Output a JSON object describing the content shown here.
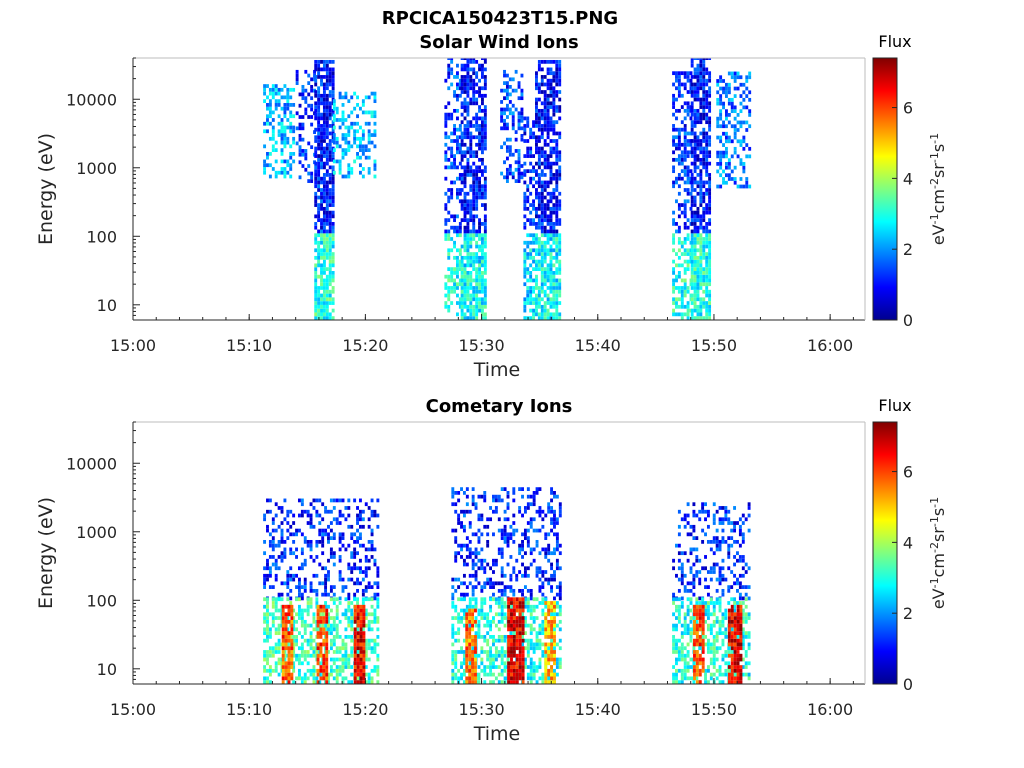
{
  "figure": {
    "title": "RPCICA150423T15.PNG"
  },
  "chart_data": [
    {
      "type": "heatmap",
      "title": "Solar Wind Ions",
      "xlabel": "Time",
      "ylabel": "Energy (eV)",
      "x_ticks": [
        "15:00",
        "15:10",
        "15:20",
        "15:30",
        "15:40",
        "15:50",
        "16:00"
      ],
      "x_range_minutes": [
        0,
        63
      ],
      "y_scale": "log",
      "y_ticks": [
        "10",
        "100",
        "1000",
        "10000"
      ],
      "y_range": [
        6,
        40000
      ],
      "colorbar": {
        "title": "Flux",
        "unit": "eV-1cm-2sr-1s-1",
        "range": [
          0,
          7.4
        ],
        "ticks": [
          "0",
          "2",
          "4",
          "6"
        ],
        "colormap": "jet"
      },
      "bursts": [
        {
          "start": 11.2,
          "end": 13.8,
          "emin": 700,
          "emax": 15000,
          "level": 2.2,
          "density": 0.45
        },
        {
          "start": 14.0,
          "end": 15.6,
          "emin": 600,
          "emax": 30000,
          "level": 1.2,
          "density": 0.3
        },
        {
          "start": 15.6,
          "end": 17.2,
          "emin": 6,
          "emax": 35000,
          "level": 1.1,
          "density": 0.75,
          "low_level": 3.0
        },
        {
          "start": 17.2,
          "end": 20.8,
          "emin": 700,
          "emax": 12000,
          "level": 2.3,
          "density": 0.4
        },
        {
          "start": 26.8,
          "end": 28.2,
          "emin": 6,
          "emax": 40000,
          "level": 1.4,
          "density": 0.4,
          "low_level": 3.0
        },
        {
          "start": 28.2,
          "end": 30.4,
          "emin": 6,
          "emax": 40000,
          "level": 1.0,
          "density": 0.7,
          "low_level": 2.8
        },
        {
          "start": 31.6,
          "end": 33.4,
          "emin": 600,
          "emax": 25000,
          "level": 1.4,
          "density": 0.4
        },
        {
          "start": 33.6,
          "end": 34.6,
          "emin": 6,
          "emax": 5000,
          "level": 1.2,
          "density": 0.5,
          "low_level": 2.6
        },
        {
          "start": 34.6,
          "end": 36.8,
          "emin": 6,
          "emax": 35000,
          "level": 1.0,
          "density": 0.7,
          "low_level": 2.8
        },
        {
          "start": 46.4,
          "end": 48.0,
          "emin": 6,
          "emax": 25000,
          "level": 1.3,
          "density": 0.45,
          "low_level": 3.0
        },
        {
          "start": 48.0,
          "end": 49.6,
          "emin": 6,
          "emax": 40000,
          "level": 1.0,
          "density": 0.75,
          "low_level": 3.0
        },
        {
          "start": 50.2,
          "end": 53.0,
          "emin": 500,
          "emax": 25000,
          "level": 1.8,
          "density": 0.4
        }
      ]
    },
    {
      "type": "heatmap",
      "title": "Cometary Ions",
      "xlabel": "Time",
      "ylabel": "Energy (eV)",
      "x_ticks": [
        "15:00",
        "15:10",
        "15:20",
        "15:30",
        "15:40",
        "15:50",
        "16:00"
      ],
      "x_range_minutes": [
        0,
        63
      ],
      "y_scale": "log",
      "y_ticks": [
        "10",
        "100",
        "1000",
        "10000"
      ],
      "y_range": [
        6,
        40000
      ],
      "colorbar": {
        "title": "Flux",
        "unit": "eV-1cm-2sr-1s-1",
        "range": [
          0,
          7.4
        ],
        "ticks": [
          "0",
          "2",
          "4",
          "6"
        ],
        "colormap": "jet"
      },
      "bursts": [
        {
          "start": 11.2,
          "end": 21.0,
          "emin": 100,
          "emax": 3000,
          "level": 1.2,
          "density": 0.35
        },
        {
          "start": 11.2,
          "end": 21.0,
          "emin": 6,
          "emax": 100,
          "level": 3.2,
          "density": 0.55
        },
        {
          "start": 12.8,
          "end": 13.8,
          "emin": 6,
          "emax": 80,
          "level": 5.8,
          "density": 0.85
        },
        {
          "start": 15.8,
          "end": 16.6,
          "emin": 6,
          "emax": 80,
          "level": 6.0,
          "density": 0.85
        },
        {
          "start": 19.0,
          "end": 20.0,
          "emin": 6,
          "emax": 80,
          "level": 6.5,
          "density": 0.9
        },
        {
          "start": 27.4,
          "end": 36.8,
          "emin": 100,
          "emax": 4000,
          "level": 1.2,
          "density": 0.35
        },
        {
          "start": 27.4,
          "end": 36.8,
          "emin": 6,
          "emax": 100,
          "level": 3.0,
          "density": 0.55
        },
        {
          "start": 28.6,
          "end": 29.6,
          "emin": 6,
          "emax": 80,
          "level": 5.6,
          "density": 0.85
        },
        {
          "start": 32.2,
          "end": 33.6,
          "emin": 6,
          "emax": 100,
          "level": 6.6,
          "density": 0.9
        },
        {
          "start": 35.4,
          "end": 36.4,
          "emin": 6,
          "emax": 90,
          "level": 5.2,
          "density": 0.8
        },
        {
          "start": 46.4,
          "end": 53.0,
          "emin": 100,
          "emax": 2500,
          "level": 1.2,
          "density": 0.35
        },
        {
          "start": 46.4,
          "end": 53.0,
          "emin": 6,
          "emax": 100,
          "level": 3.0,
          "density": 0.55
        },
        {
          "start": 48.2,
          "end": 49.0,
          "emin": 6,
          "emax": 80,
          "level": 6.0,
          "density": 0.85
        },
        {
          "start": 51.2,
          "end": 52.4,
          "emin": 6,
          "emax": 80,
          "level": 6.6,
          "density": 0.9
        }
      ]
    }
  ]
}
